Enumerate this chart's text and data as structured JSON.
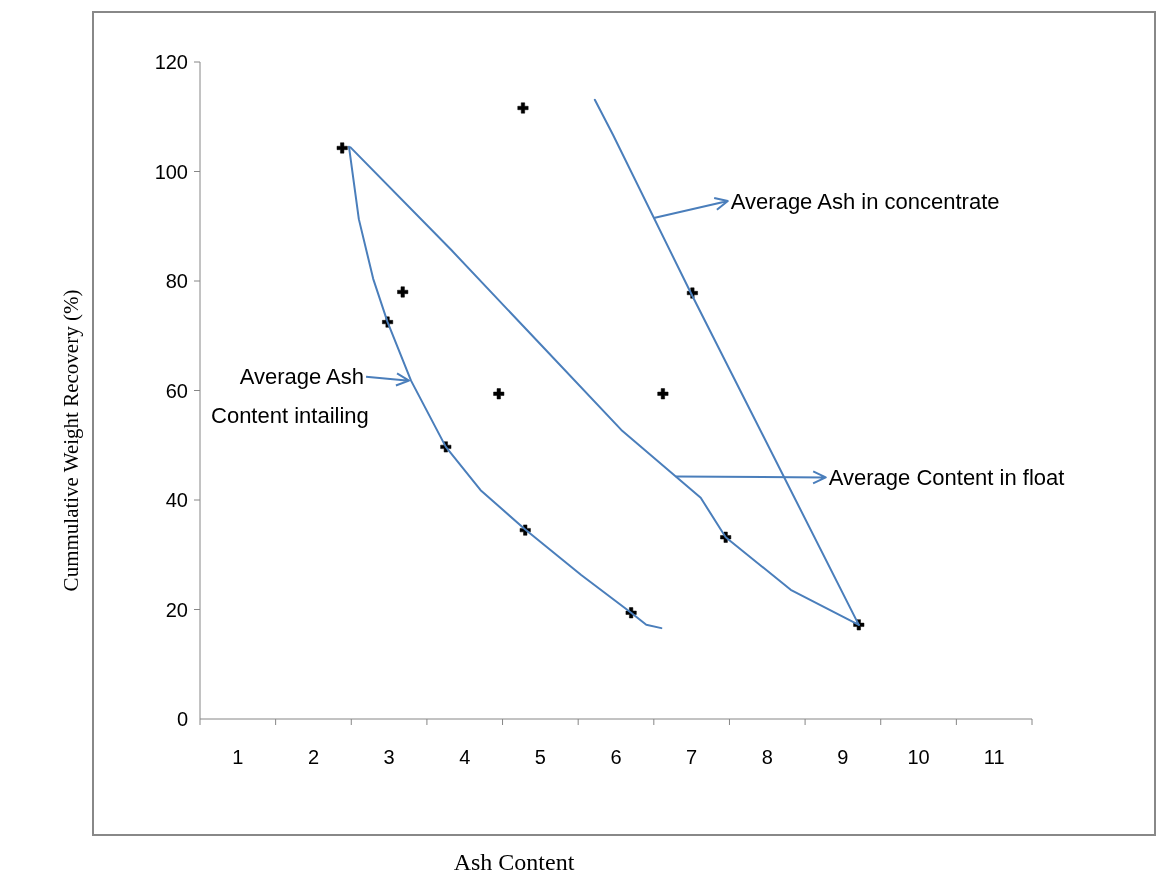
{
  "chart_data": {
    "type": "line",
    "xlabel": "Ash Content",
    "ylabel": "Cummulative Weight Recovery (%)",
    "xlim": [
      0.5,
      11.5
    ],
    "xticks": [
      1,
      2,
      3,
      4,
      5,
      6,
      7,
      8,
      9,
      10,
      11
    ],
    "ylim": [
      0,
      120
    ],
    "yticks": [
      0,
      20,
      40,
      60,
      80,
      100,
      120
    ],
    "grid": false,
    "line_style": "solid",
    "series": [
      {
        "color": "#4a7ebb",
        "x": [
          2.47,
          2.6,
          2.79,
          2.98,
          3.29,
          3.75,
          4.21,
          4.8,
          5.54,
          6.2,
          6.4,
          6.6
        ],
        "values": [
          104.5,
          91.3,
          80.4,
          72.5,
          61.8,
          49.7,
          41.8,
          34.6,
          26.3,
          19.4,
          17.2,
          16.6
        ]
      },
      {
        "color": "#4a7ebb",
        "x": [
          2.49,
          3.82,
          5.01,
          6.07,
          7.12,
          7.45,
          8.31,
          9.21
        ],
        "values": [
          104.4,
          85.7,
          68.3,
          52.8,
          40.4,
          33.2,
          23.6,
          17.2
        ]
      },
      {
        "color": "#4a7ebb",
        "x": [
          5.72,
          5.96,
          6.99,
          9.21
        ],
        "values": [
          113.1,
          106.7,
          77.8,
          17.2
        ]
      },
      {
        "type": "scatter",
        "color": "#000000",
        "x": [
          2.38,
          4.77,
          3.18,
          2.98,
          4.45,
          6.62,
          3.75,
          4.8,
          6.2,
          7.01,
          7.45,
          9.21
        ],
        "values": [
          104.3,
          111.6,
          78.0,
          72.5,
          59.4,
          59.4,
          49.7,
          34.5,
          19.4,
          77.8,
          33.2,
          17.2
        ]
      }
    ],
    "annotations": [
      {
        "text": "Average Ash in concentrate",
        "x": 6.5,
        "y": 91.5
      },
      {
        "text": "Average Content in float",
        "x": 6.79,
        "y": 44.3
      },
      {
        "text": "Average Ash\nContent intailing",
        "x": 3.29,
        "y": 61.8
      }
    ]
  }
}
